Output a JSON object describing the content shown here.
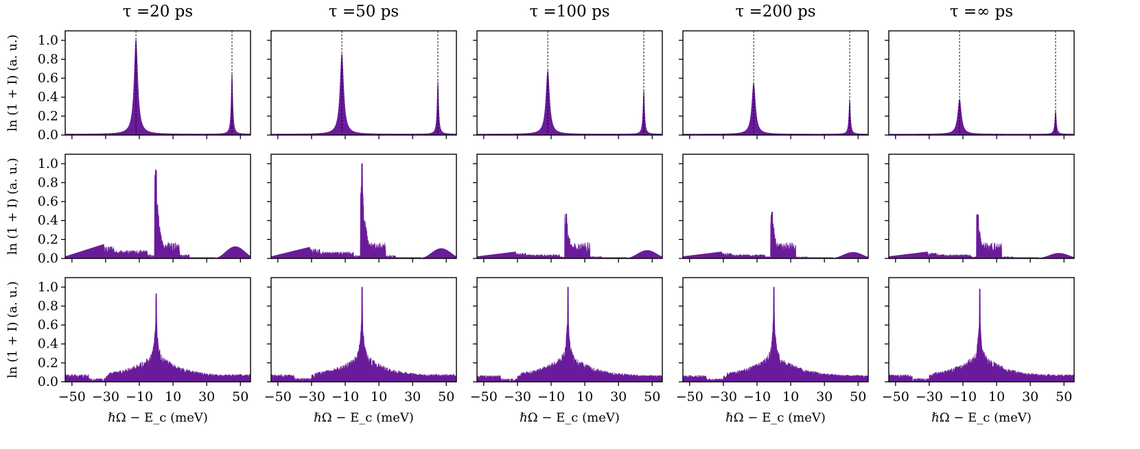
{
  "chart_data": {
    "type": "area",
    "layout": "3 rows x 5 columns grid of spectra",
    "fill_color": "#6a1b9a",
    "marker_line_color": "#000000",
    "column_titles": [
      "τ =20 ps",
      "τ =50 ps",
      "τ =100 ps",
      "τ =200 ps",
      "τ =∞ ps"
    ],
    "xlabel": "ℏΩ − E_c (meV)",
    "ylabel": "ln (1 + I) (a. u.)",
    "xlim": [
      -54,
      56
    ],
    "ylim": [
      0,
      1.1
    ],
    "xticks": [
      -50,
      -30,
      -10,
      10,
      30,
      50
    ],
    "xtick_labels": [
      "−50",
      "−30",
      "−10",
      "10",
      "30",
      "50"
    ],
    "yticks": [
      0.0,
      0.2,
      0.4,
      0.6,
      0.8,
      1.0
    ],
    "ytick_labels": [
      "0.0",
      "0.2",
      "0.4",
      "0.6",
      "0.8",
      "1.0"
    ],
    "rows": [
      {
        "row": 1,
        "shape": "two lorentzian peaks with dashed vertical markers",
        "peak_positions": [
          -12,
          45
        ],
        "panels": [
          {
            "tau": "20 ps",
            "peak1": 1.0,
            "peak2": 0.65,
            "baseline": 0.01
          },
          {
            "tau": "50 ps",
            "peak1": 0.85,
            "peak2": 0.56,
            "baseline": 0.01
          },
          {
            "tau": "100 ps",
            "peak1": 0.67,
            "peak2": 0.47,
            "baseline": 0.01
          },
          {
            "tau": "200 ps",
            "peak1": 0.54,
            "peak2": 0.37,
            "baseline": 0.01
          },
          {
            "tau": "∞ ps",
            "peak1": 0.37,
            "peak2": 0.25,
            "baseline": 0.01
          }
        ]
      },
      {
        "row": 2,
        "shape": "noisy spectrum with central spike near 0 meV",
        "panels": [
          {
            "tau": "20 ps",
            "spike_x": 0,
            "spike": 0.93,
            "left_shelf": 0.15,
            "right_hump": 0.12
          },
          {
            "tau": "50 ps",
            "spike_x": 0,
            "spike": 1.0,
            "left_shelf": 0.12,
            "right_hump": 0.1
          },
          {
            "tau": "100 ps",
            "spike_x": -1,
            "spike": 0.47,
            "left_shelf": 0.07,
            "right_hump": 0.08
          },
          {
            "tau": "200 ps",
            "spike_x": -1,
            "spike": 0.49,
            "left_shelf": 0.07,
            "right_hump": 0.06
          },
          {
            "tau": "∞ ps",
            "spike_x": -1,
            "spike": 0.46,
            "left_shelf": 0.07,
            "right_hump": 0.05
          }
        ]
      },
      {
        "row": 3,
        "shape": "broad noisy band with sharp central spike at 0 meV",
        "panels": [
          {
            "tau": "20 ps",
            "spike": 0.93,
            "band_left": -28,
            "band_right": 55,
            "outer": 0.08
          },
          {
            "tau": "50 ps",
            "spike": 1.0,
            "band_left": -28,
            "band_right": 55,
            "outer": 0.08
          },
          {
            "tau": "100 ps",
            "spike": 1.0,
            "band_left": -28,
            "band_right": 55,
            "outer": 0.07
          },
          {
            "tau": "200 ps",
            "spike": 1.0,
            "band_left": -28,
            "band_right": 55,
            "outer": 0.07
          },
          {
            "tau": "∞ ps",
            "spike": 0.98,
            "band_left": -28,
            "band_right": 55,
            "outer": 0.08
          }
        ]
      }
    ]
  }
}
